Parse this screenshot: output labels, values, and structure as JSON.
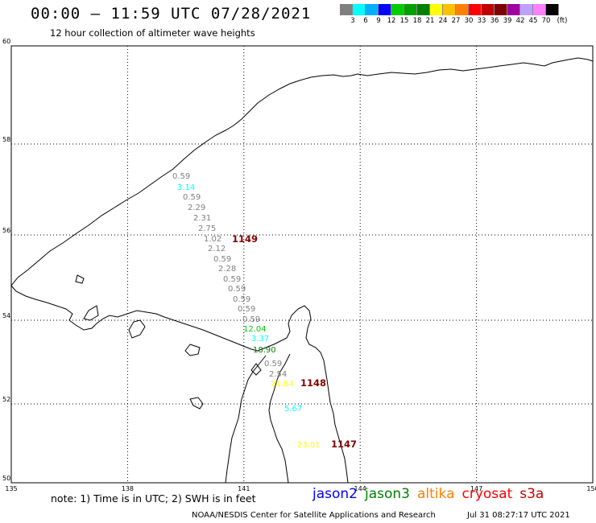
{
  "title": "00:00 – 11:59 UTC 07/28/2021",
  "subtitle": "12 hour collection of altimeter wave heights",
  "colorbar": {
    "colors": [
      "#808080",
      "#00ffff",
      "#00b0ff",
      "#0000ff",
      "#00cc00",
      "#00a000",
      "#008000",
      "#ffff00",
      "#ffc000",
      "#ff8000",
      "#ff0000",
      "#c00000",
      "#800000",
      "#a000a0",
      "#c0a0ff",
      "#ff80ff",
      "#000000"
    ],
    "labels": [
      "3",
      "6",
      "9",
      "12",
      "15",
      "18",
      "21",
      "24",
      "27",
      "30",
      "33",
      "36",
      "39",
      "42",
      "45",
      "70",
      "(ft)"
    ]
  },
  "map": {
    "lat_min": 50,
    "lat_max": 60,
    "lon_min": 135,
    "lon_max": 150,
    "lat_ticks": [
      "50",
      "52",
      "54",
      "56",
      "58",
      "60"
    ],
    "lon_ticks": [
      "135",
      "138",
      "141",
      "144",
      "147",
      "150"
    ],
    "grid": true
  },
  "wave_labels": [
    {
      "text": "0.59",
      "color": "#808080"
    },
    {
      "text": "3.14",
      "color": "#00ffff"
    },
    {
      "text": "0.59",
      "color": "#808080"
    },
    {
      "text": "2.29",
      "color": "#808080"
    },
    {
      "text": "2.31",
      "color": "#808080"
    },
    {
      "text": "2.75",
      "color": "#808080"
    },
    {
      "text": "1.02",
      "color": "#808080"
    },
    {
      "text": "1149",
      "color": "#800000"
    },
    {
      "text": "2.12",
      "color": "#808080"
    },
    {
      "text": "0.59",
      "color": "#808080"
    },
    {
      "text": "2.28",
      "color": "#808080"
    },
    {
      "text": "0.59",
      "color": "#808080"
    },
    {
      "text": "0.59",
      "color": "#808080"
    },
    {
      "text": "0.59",
      "color": "#808080"
    },
    {
      "text": "0.59",
      "color": "#808080"
    },
    {
      "text": "0.59",
      "color": "#808080"
    },
    {
      "text": "12.04",
      "color": "#00cc00"
    },
    {
      "text": "3.37",
      "color": "#00ffff"
    },
    {
      "text": "18.90",
      "color": "#008000"
    },
    {
      "text": "0.59",
      "color": "#808080"
    },
    {
      "text": "2.54",
      "color": "#808080"
    },
    {
      "text": "21.84",
      "color": "#ffff00"
    },
    {
      "text": "1148",
      "color": "#800000"
    },
    {
      "text": "5.67",
      "color": "#00ffff"
    },
    {
      "text": "23.01",
      "color": "#ffff00"
    },
    {
      "text": "1147",
      "color": "#800000"
    }
  ],
  "footer": {
    "note": "note: 1) Time is in UTC; 2) SWH is in feet",
    "satellites": [
      {
        "name": "jason2",
        "color": "#0000ff"
      },
      {
        "name": "jason3",
        "color": "#008000"
      },
      {
        "name": "altika",
        "color": "#ff8000"
      },
      {
        "name": "cryosat",
        "color": "#ff0000"
      },
      {
        "name": "s3a",
        "color": "#c00000"
      }
    ],
    "credit": "NOAA/NESDIS Center for Satellite Applications and Research",
    "timestamp": "Jul 31 08:27:17 UTC 2021"
  }
}
